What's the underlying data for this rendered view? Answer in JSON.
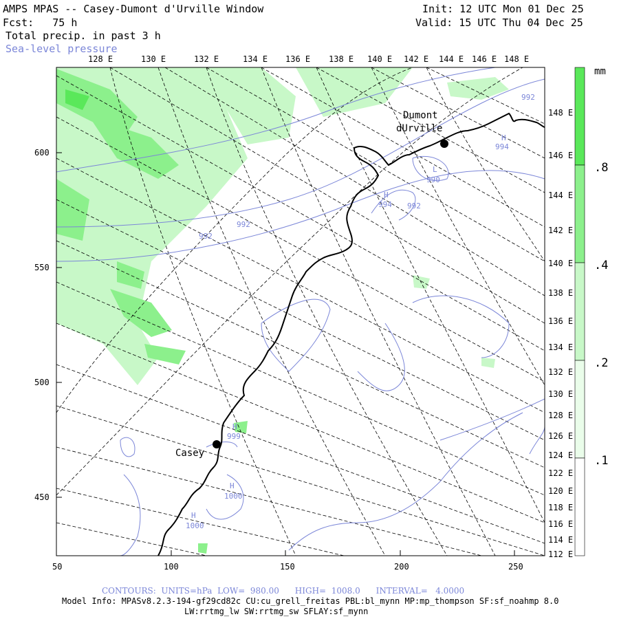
{
  "header": {
    "title": "AMPS MPAS -- Casey-Dumont d'Urville Window",
    "fcst": "Fcst:   75 h",
    "field": "Total precip. in past 3 h",
    "overlay": "Sea-level pressure",
    "init": "Init: 12 UTC Mon 01 Dec 25",
    "valid": "Valid: 15 UTC Thu 04 Dec 25"
  },
  "axes": {
    "top_lon": [
      "128 E",
      "130 E",
      "132 E",
      "134 E",
      "136 E",
      "138 E",
      "140 E",
      "142 E",
      "144 E",
      "146 E",
      "148 E"
    ],
    "right_lon": [
      "148 E",
      "146 E",
      "144 E",
      "142 E",
      "140 E",
      "138 E",
      "136 E",
      "134 E",
      "132 E",
      "130 E",
      "128 E",
      "126 E",
      "124 E",
      "122 E",
      "120 E",
      "118 E",
      "116 E",
      "114 E",
      "112 E"
    ],
    "left_y": [
      "600",
      "550",
      "500",
      "450"
    ],
    "bottom_x": [
      "50",
      "100",
      "150",
      "200",
      "250"
    ]
  },
  "stations": [
    {
      "name_line1": "Dumont",
      "name_line2": "dUrville"
    },
    {
      "name_line1": "Casey"
    }
  ],
  "pressure_labels": {
    "h1": "H",
    "v994a": "994",
    "l1": "L",
    "v990": "990",
    "h2": "H",
    "v994b": "994",
    "v992a": "992",
    "v992b": "992",
    "v992c": "992",
    "v992d": "992",
    "h3": "H",
    "v999": "999",
    "h4": "H",
    "v1000a": "1000",
    "h5": "H",
    "v1000b": "1000"
  },
  "colorbar": {
    "unit": "mm",
    "labels": [
      ".8",
      ".4",
      ".2",
      ".1"
    ],
    "colors": [
      "#5ae85a",
      "#8cf08c",
      "#c8f8c8",
      "#ffffff"
    ]
  },
  "footer": {
    "contours": "CONTOURS:  UNITS=hPa  LOW=  980.00      HIGH=  1008.0      INTERVAL=   4.0000",
    "model1": "Model Info: MPASv8.2.3-194-gf29cd82c CU:cu_grell_freitas PBL:bl_mynn MP:mp_thompson SF:sf_noahmp 8.0",
    "model2": "LW:rrtmg_lw SW:rrtmg_sw SFLAY:sf_mynn"
  },
  "colors": {
    "contour": "#7b86d8",
    "precip_light": "#c8f8c8",
    "precip_mid": "#8cf08c",
    "precip_dark": "#5ae85a"
  }
}
